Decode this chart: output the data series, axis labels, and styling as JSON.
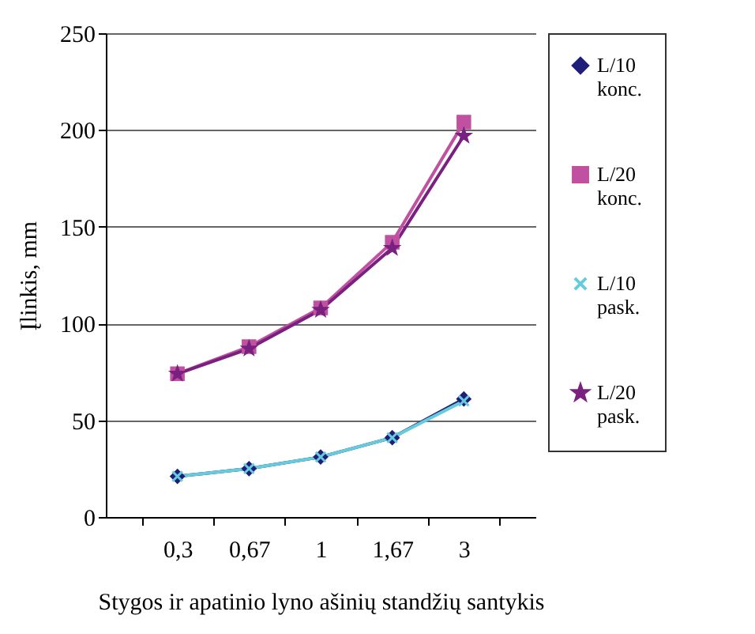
{
  "chart_data": {
    "type": "line",
    "xlabel": "Stygos ir apatinio lyno ašinių standžių santykis",
    "ylabel": "Įlinkis, mm",
    "categories": [
      "0,3",
      "0,67",
      "1",
      "1,67",
      "3"
    ],
    "series": [
      {
        "name": "L/10 konc.",
        "color": "#1f1f7a",
        "marker": "diamond",
        "values": [
          21,
          25,
          31,
          41,
          61
        ]
      },
      {
        "name": "L/20 konc.",
        "color": "#c050a0",
        "marker": "square",
        "values": [
          74,
          88,
          108,
          142,
          204
        ]
      },
      {
        "name": "L/10 pask.",
        "color": "#66ccdd",
        "marker": "cross",
        "values": [
          21,
          25,
          31,
          41,
          60
        ]
      },
      {
        "name": "L/20 pask.",
        "color": "#7a2080",
        "marker": "star",
        "values": [
          74,
          87,
          107,
          139,
          197
        ]
      }
    ],
    "ylim": [
      0,
      250
    ],
    "yticks": [
      0,
      50,
      100,
      150,
      200,
      250
    ],
    "grid": "y",
    "legend": "right"
  }
}
